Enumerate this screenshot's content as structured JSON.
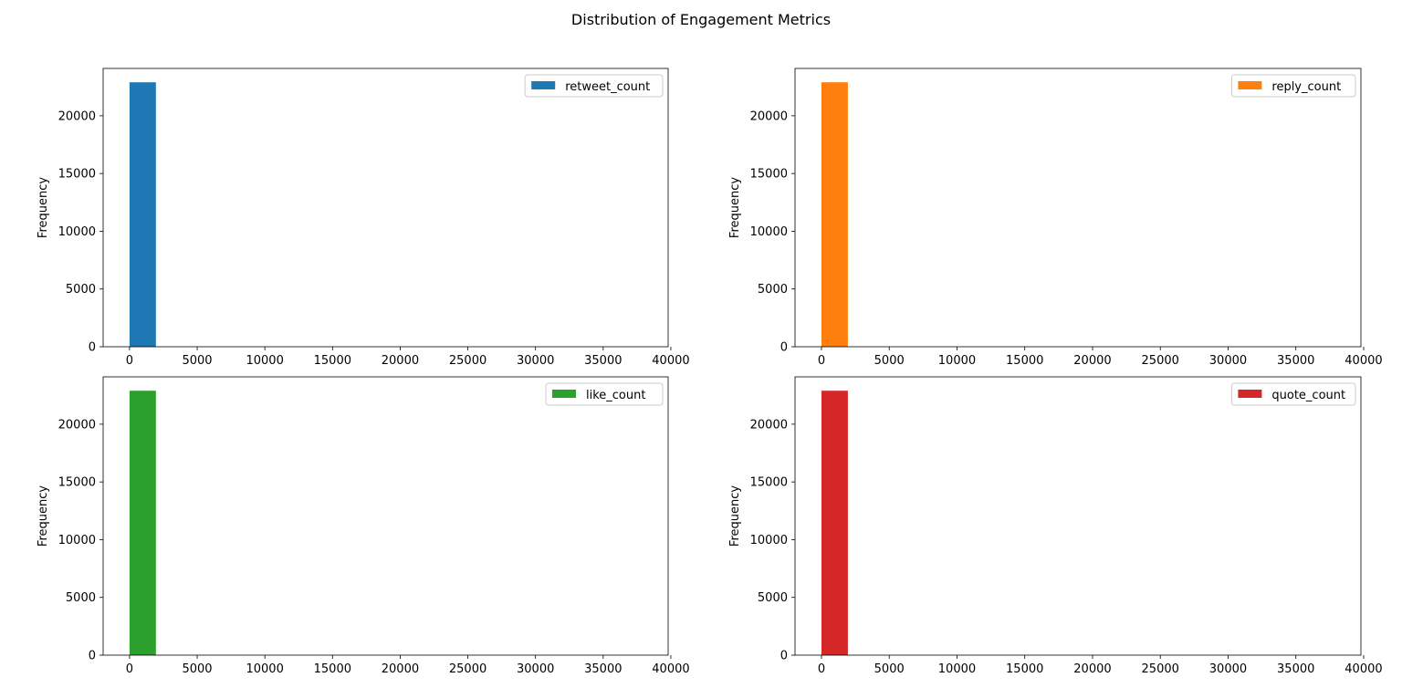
{
  "page_title": "Distribution of Engagement Metrics",
  "chart_data": [
    {
      "type": "bar",
      "series": [
        {
          "name": "retweet_count",
          "color": "#1f77b4",
          "bins": [
            {
              "x0": 0,
              "x1": 1950,
              "count": 22900
            }
          ]
        }
      ],
      "xlabel": "",
      "ylabel": "Frequency",
      "xlim": [
        -1950,
        39800
      ],
      "ylim": [
        0,
        24100
      ],
      "xticks": [
        0,
        5000,
        10000,
        15000,
        20000,
        25000,
        30000,
        35000,
        40000
      ],
      "yticks": [
        0,
        5000,
        10000,
        15000,
        20000
      ],
      "legend": "top-right",
      "grid": false
    },
    {
      "type": "bar",
      "series": [
        {
          "name": "reply_count",
          "color": "#ff7f0e",
          "bins": [
            {
              "x0": 0,
              "x1": 1950,
              "count": 22900
            }
          ]
        }
      ],
      "xlabel": "",
      "ylabel": "Frequency",
      "xlim": [
        -1950,
        39800
      ],
      "ylim": [
        0,
        24100
      ],
      "xticks": [
        0,
        5000,
        10000,
        15000,
        20000,
        25000,
        30000,
        35000,
        40000
      ],
      "yticks": [
        0,
        5000,
        10000,
        15000,
        20000
      ],
      "legend": "top-right",
      "grid": false
    },
    {
      "type": "bar",
      "series": [
        {
          "name": "like_count",
          "color": "#2ca02c",
          "bins": [
            {
              "x0": 0,
              "x1": 1950,
              "count": 22900
            }
          ]
        }
      ],
      "xlabel": "",
      "ylabel": "Frequency",
      "xlim": [
        -1950,
        39800
      ],
      "ylim": [
        0,
        24100
      ],
      "xticks": [
        0,
        5000,
        10000,
        15000,
        20000,
        25000,
        30000,
        35000,
        40000
      ],
      "yticks": [
        0,
        5000,
        10000,
        15000,
        20000
      ],
      "legend": "top-right",
      "grid": false
    },
    {
      "type": "bar",
      "series": [
        {
          "name": "quote_count",
          "color": "#d62728",
          "bins": [
            {
              "x0": 0,
              "x1": 1950,
              "count": 22900
            }
          ]
        }
      ],
      "xlabel": "",
      "ylabel": "Frequency",
      "xlim": [
        -1950,
        39800
      ],
      "ylim": [
        0,
        24100
      ],
      "xticks": [
        0,
        5000,
        10000,
        15000,
        20000,
        25000,
        30000,
        35000,
        40000
      ],
      "yticks": [
        0,
        5000,
        10000,
        15000,
        20000
      ],
      "legend": "top-right",
      "grid": false
    }
  ]
}
